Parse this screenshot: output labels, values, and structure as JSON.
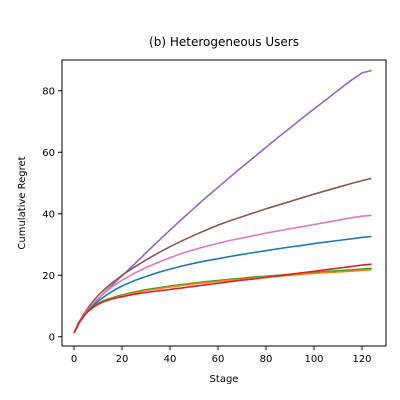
{
  "chart_data": {
    "type": "line",
    "title": "(b) Heterogeneous Users",
    "xlabel": "Stage",
    "ylabel": "Cumulative Regret",
    "xlim": [
      -5,
      130
    ],
    "ylim": [
      -3,
      90
    ],
    "xticks": [
      0,
      20,
      40,
      60,
      80,
      100,
      120
    ],
    "yticks": [
      0,
      20,
      40,
      60,
      80
    ],
    "grid": false,
    "legend": "none",
    "x": [
      0,
      2,
      4,
      6,
      8,
      10,
      12,
      14,
      16,
      18,
      20,
      25,
      30,
      35,
      40,
      45,
      50,
      55,
      60,
      65,
      70,
      75,
      80,
      85,
      90,
      95,
      100,
      105,
      110,
      115,
      120,
      124
    ],
    "series": [
      {
        "color": "#9467bd",
        "values": [
          1.2,
          4.5,
          6.8,
          8.7,
          10.5,
          12.2,
          13.8,
          15.4,
          16.9,
          18.4,
          19.8,
          23.5,
          27.3,
          31.0,
          34.7,
          38.3,
          41.8,
          45.3,
          48.6,
          51.9,
          55.2,
          58.4,
          61.6,
          64.8,
          67.9,
          71.0,
          74.1,
          77.1,
          80.1,
          83.1,
          85.8,
          86.6
        ]
      },
      {
        "color": "#8c564b",
        "values": [
          1.2,
          4.7,
          7.3,
          9.6,
          11.6,
          13.4,
          14.9,
          16.3,
          17.6,
          18.8,
          20.0,
          22.6,
          25.0,
          27.2,
          29.3,
          31.2,
          33.0,
          34.7,
          36.3,
          37.7,
          39.0,
          40.3,
          41.6,
          42.8,
          44.0,
          45.2,
          46.4,
          47.5,
          48.6,
          49.7,
          50.8,
          51.5
        ]
      },
      {
        "color": "#e377c2",
        "values": [
          1.2,
          4.6,
          7.0,
          9.0,
          10.8,
          12.4,
          13.8,
          15.1,
          16.3,
          17.4,
          18.4,
          20.6,
          22.5,
          24.2,
          25.7,
          27.1,
          28.3,
          29.4,
          30.4,
          31.3,
          32.1,
          32.9,
          33.7,
          34.4,
          35.1,
          35.8,
          36.5,
          37.2,
          37.9,
          38.6,
          39.2,
          39.5
        ]
      },
      {
        "color": "#1f77b4",
        "values": [
          1.2,
          4.4,
          6.7,
          8.6,
          10.2,
          11.5,
          12.7,
          13.8,
          14.8,
          15.7,
          16.5,
          18.2,
          19.6,
          20.9,
          22.0,
          23.0,
          23.9,
          24.7,
          25.4,
          26.1,
          26.8,
          27.4,
          28.0,
          28.6,
          29.2,
          29.7,
          30.3,
          30.8,
          31.3,
          31.8,
          32.3,
          32.6
        ]
      },
      {
        "color": "#2ca02c",
        "values": [
          1.2,
          4.5,
          6.8,
          8.5,
          9.8,
          10.8,
          11.6,
          12.2,
          12.7,
          13.2,
          13.6,
          14.5,
          15.3,
          15.9,
          16.5,
          17.0,
          17.5,
          17.9,
          18.3,
          18.7,
          19.0,
          19.4,
          19.7,
          20.0,
          20.3,
          20.6,
          20.9,
          21.2,
          21.5,
          21.7,
          22.0,
          22.2
        ]
      },
      {
        "color": "#ff7f0e",
        "values": [
          1.2,
          4.3,
          6.6,
          8.3,
          9.6,
          10.5,
          11.3,
          11.9,
          12.4,
          12.9,
          13.3,
          14.2,
          15.0,
          15.6,
          16.2,
          16.7,
          17.2,
          17.6,
          18.0,
          18.4,
          18.7,
          19.0,
          19.4,
          19.7,
          20.0,
          20.3,
          20.6,
          20.9,
          21.1,
          21.3,
          21.6,
          21.8
        ]
      },
      {
        "color": "#d62728",
        "values": [
          1.2,
          4.4,
          6.7,
          8.4,
          9.6,
          10.6,
          11.3,
          11.9,
          12.3,
          12.7,
          13.0,
          13.8,
          14.4,
          14.9,
          15.4,
          15.9,
          16.4,
          16.9,
          17.4,
          17.9,
          18.4,
          18.8,
          19.3,
          19.8,
          20.3,
          20.8,
          21.3,
          21.8,
          22.3,
          22.8,
          23.3,
          23.6
        ]
      }
    ]
  }
}
